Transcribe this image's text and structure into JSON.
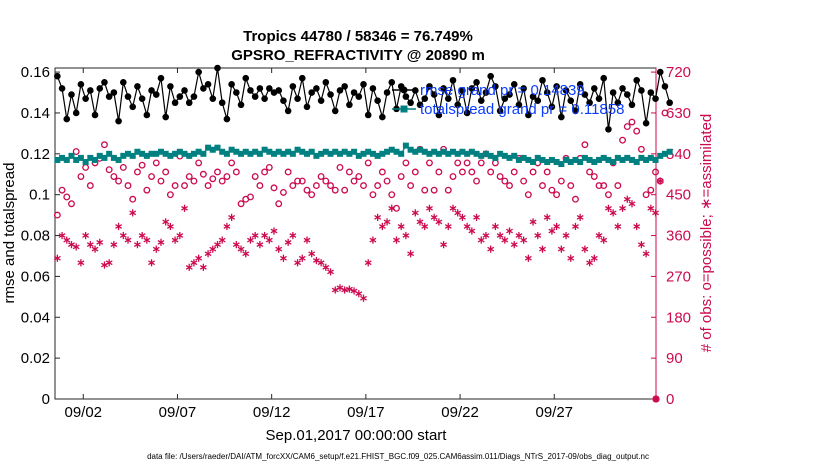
{
  "chart_data": {
    "type": "line",
    "title_line1": "Tropics 44780 / 58346 = 76.749%",
    "title_line2": "GPSRO_REFRACTIVITY @ 20890 m",
    "xlabel": "Sep.01,2017 00:00:00 start",
    "ylabel_left": "rmse and totalspread",
    "ylabel_right": "# of obs: o=possible; ∗=assimilated",
    "xlim": [
      0.5,
      32.4
    ],
    "ylim_left": [
      0,
      0.162
    ],
    "ylim_right": [
      0,
      729
    ],
    "x_ticks": [
      {
        "value": 2,
        "label": "09/02"
      },
      {
        "value": 7,
        "label": "09/07"
      },
      {
        "value": 12,
        "label": "09/12"
      },
      {
        "value": 17,
        "label": "09/17"
      },
      {
        "value": 22,
        "label": "09/22"
      },
      {
        "value": 27,
        "label": "09/27"
      }
    ],
    "y_ticks_left": [
      {
        "value": 0,
        "label": "0"
      },
      {
        "value": 0.02,
        "label": "0.02"
      },
      {
        "value": 0.04,
        "label": "0.04"
      },
      {
        "value": 0.06,
        "label": "0.06"
      },
      {
        "value": 0.08,
        "label": "0.08"
      },
      {
        "value": 0.1,
        "label": "0.1"
      },
      {
        "value": 0.12,
        "label": "0.12"
      },
      {
        "value": 0.14,
        "label": "0.14"
      },
      {
        "value": 0.16,
        "label": "0.16"
      }
    ],
    "y_ticks_right": [
      {
        "value": 0,
        "label": "0"
      },
      {
        "value": 90,
        "label": "90"
      },
      {
        "value": 180,
        "label": "180"
      },
      {
        "value": 270,
        "label": "270"
      },
      {
        "value": 360,
        "label": "360"
      },
      {
        "value": 450,
        "label": "450"
      },
      {
        "value": 540,
        "label": "540"
      },
      {
        "value": 630,
        "label": "630"
      },
      {
        "value": 720,
        "label": "720"
      }
    ],
    "x_start": 0.625,
    "x_step": 0.25,
    "series": [
      {
        "name": "rmse",
        "legend": "rmse grand pr = 0.14839",
        "color": "#000000",
        "marker": "filled-circle",
        "axis": "left",
        "values": [
          0.158,
          0.152,
          0.137,
          0.149,
          0.14,
          0.154,
          0.147,
          0.151,
          0.139,
          0.152,
          0.155,
          0.148,
          0.15,
          0.136,
          0.155,
          0.148,
          0.143,
          0.153,
          0.147,
          0.139,
          0.151,
          0.149,
          0.157,
          0.138,
          0.153,
          0.145,
          0.148,
          0.151,
          0.145,
          0.148,
          0.16,
          0.152,
          0.154,
          0.147,
          0.162,
          0.145,
          0.137,
          0.154,
          0.15,
          0.144,
          0.157,
          0.151,
          0.148,
          0.152,
          0.147,
          0.152,
          0.15,
          0.151,
          0.146,
          0.141,
          0.153,
          0.147,
          0.157,
          0.143,
          0.15,
          0.152,
          0.146,
          0.155,
          0.149,
          0.141,
          0.151,
          0.153,
          0.144,
          0.15,
          0.148,
          0.154,
          0.139,
          0.152,
          0.146,
          0.138,
          0.15,
          0.155,
          0.142,
          0.153,
          0.148,
          0.145,
          0.151,
          0.144,
          0.147,
          0.153,
          0.149,
          0.139,
          0.152,
          0.147,
          0.156,
          0.144,
          0.151,
          0.14,
          0.152,
          0.155,
          0.146,
          0.15,
          0.158,
          0.153,
          0.141,
          0.147,
          0.149,
          0.154,
          0.144,
          0.152,
          0.139,
          0.148,
          0.146,
          0.156,
          0.15,
          0.143,
          0.153,
          0.138,
          0.151,
          0.146,
          0.141,
          0.154,
          0.149,
          0.145,
          0.152,
          0.147,
          0.157,
          0.132,
          0.15,
          0.145,
          0.152,
          0.149,
          0.144,
          0.156,
          0.151,
          0.135,
          0.15,
          0.147,
          0.16,
          0.153,
          0.145
        ]
      },
      {
        "name": "totalspread",
        "legend": "totalspread grand pr = 0.11858",
        "color": "#008080",
        "marker": "filled-square",
        "axis": "left",
        "values": [
          0.117,
          0.118,
          0.117,
          0.119,
          0.117,
          0.118,
          0.116,
          0.118,
          0.117,
          0.119,
          0.118,
          0.12,
          0.118,
          0.117,
          0.119,
          0.12,
          0.119,
          0.121,
          0.12,
          0.119,
          0.12,
          0.12,
          0.121,
          0.12,
          0.119,
          0.12,
          0.121,
          0.12,
          0.119,
          0.12,
          0.121,
          0.12,
          0.123,
          0.122,
          0.123,
          0.121,
          0.12,
          0.122,
          0.121,
          0.12,
          0.121,
          0.12,
          0.121,
          0.12,
          0.122,
          0.121,
          0.12,
          0.121,
          0.12,
          0.121,
          0.12,
          0.122,
          0.121,
          0.12,
          0.121,
          0.119,
          0.12,
          0.121,
          0.12,
          0.121,
          0.12,
          0.121,
          0.12,
          0.121,
          0.119,
          0.12,
          0.121,
          0.12,
          0.119,
          0.12,
          0.121,
          0.122,
          0.121,
          0.12,
          0.124,
          0.122,
          0.121,
          0.122,
          0.121,
          0.12,
          0.121,
          0.12,
          0.121,
          0.12,
          0.121,
          0.12,
          0.121,
          0.12,
          0.121,
          0.12,
          0.119,
          0.12,
          0.119,
          0.118,
          0.12,
          0.119,
          0.118,
          0.119,
          0.117,
          0.118,
          0.117,
          0.116,
          0.118,
          0.117,
          0.116,
          0.117,
          0.116,
          0.115,
          0.117,
          0.116,
          0.117,
          0.116,
          0.118,
          0.117,
          0.116,
          0.117,
          0.118,
          0.117,
          0.116,
          0.118,
          0.117,
          0.118,
          0.117,
          0.116,
          0.118,
          0.117,
          0.118,
          0.117,
          0.119,
          0.12,
          0.121
        ]
      },
      {
        "name": "possible",
        "legend": "",
        "color": "#cc0a50",
        "marker": "open-circle",
        "axis": "right",
        "values": [
          405,
          460,
          445,
          430,
          545,
          490,
          510,
          470,
          520,
          530,
          560,
          505,
          490,
          480,
          510,
          470,
          440,
          500,
          515,
          460,
          490,
          520,
          480,
          500,
          450,
          470,
          535,
          470,
          490,
          480,
          520,
          495,
          470,
          485,
          500,
          480,
          490,
          520,
          500,
          430,
          440,
          445,
          490,
          470,
          500,
          510,
          465,
          430,
          455,
          500,
          470,
          480,
          480,
          460,
          450,
          470,
          490,
          480,
          470,
          460,
          510,
          460,
          500,
          480,
          490,
          470,
          520,
          450,
          470,
          500,
          480,
          450,
          420,
          490,
          520,
          470,
          500,
          550,
          460,
          520,
          460,
          500,
          550,
          460,
          490,
          520,
          500,
          520,
          500,
          480,
          520,
          540,
          500,
          520,
          490,
          480,
          470,
          500,
          530,
          480,
          450,
          500,
          520,
          470,
          500,
          460,
          450,
          480,
          530,
          470,
          440,
          530,
          560,
          500,
          490,
          470,
          470,
          450,
          520,
          470,
          570,
          600,
          610,
          590,
          550,
          450,
          460,
          500,
          480,
          630
        ]
      },
      {
        "name": "assimilated",
        "legend": "",
        "color": "#cc0a50",
        "marker": "asterisk",
        "axis": "right",
        "values": [
          310,
          360,
          350,
          340,
          335,
          300,
          360,
          340,
          330,
          345,
          295,
          300,
          340,
          380,
          360,
          350,
          410,
          340,
          360,
          350,
          300,
          330,
          345,
          390,
          380,
          350,
          360,
          420,
          290,
          300,
          310,
          290,
          320,
          330,
          340,
          350,
          380,
          400,
          340,
          330,
          320,
          350,
          360,
          340,
          360,
          350,
          370,
          330,
          310,
          345,
          360,
          300,
          310,
          350,
          320,
          305,
          300,
          290,
          280,
          240,
          245,
          240,
          242,
          238,
          232,
          222,
          300,
          350,
          400,
          380,
          390,
          420,
          350,
          380,
          360,
          320,
          410,
          390,
          380,
          420,
          400,
          390,
          340,
          380,
          420,
          410,
          400,
          380,
          370,
          400,
          350,
          360,
          330,
          380,
          360,
          350,
          370,
          340,
          360,
          350,
          310,
          390,
          360,
          330,
          400,
          370,
          380,
          330,
          360,
          310,
          380,
          400,
          330,
          300,
          310,
          360,
          350,
          420,
          410,
          380,
          420,
          440,
          430,
          380,
          340,
          320,
          420,
          410,
          480
        ]
      }
    ]
  },
  "footnote": "data file: /Users/raeder/DAI/ATM_forcXX/CAM6_setup/f.e21.FHIST_BGC.f09_025.CAM6assim.011/Diags_NTrS_2017-09/obs_diag_output.nc"
}
